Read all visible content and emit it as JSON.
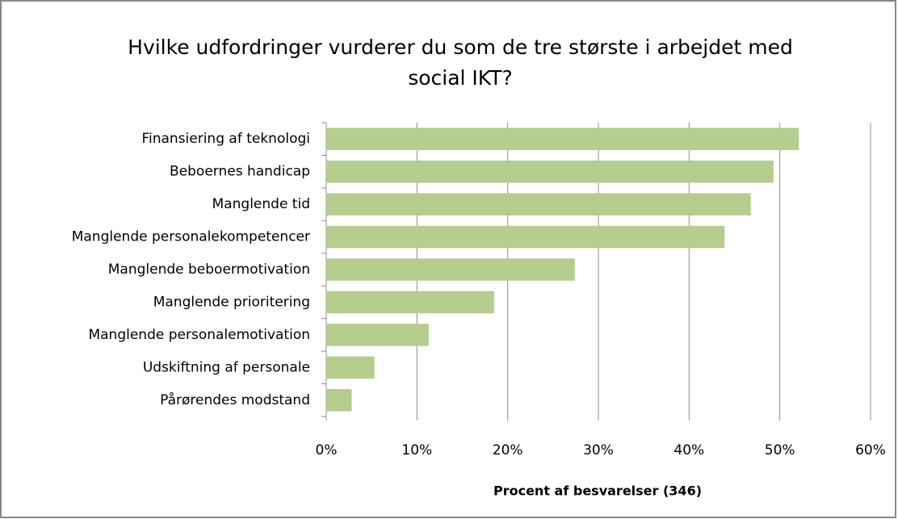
{
  "chart_data": {
    "type": "barh",
    "title": "Hvilke udfordringer vurderer du som de tre største i arbejdet med social IKT?",
    "xlabel": "Procent af besvarelser (346)",
    "categories": [
      "Finansiering af teknologi",
      "Beboernes handicap",
      "Manglende tid",
      "Manglende personalekompetencer",
      "Manglende beboermotivation",
      "Manglende prioritering",
      "Manglende personalemotivation",
      "Udskiftning af personale",
      "Pårørendes modstand"
    ],
    "values": [
      52.1,
      49.3,
      46.8,
      43.9,
      27.4,
      18.5,
      11.3,
      5.3,
      2.8
    ],
    "color": "#b5cd8d",
    "xlim": [
      0,
      60
    ],
    "xticks": [
      {
        "value": 0,
        "label": "0%"
      },
      {
        "value": 10,
        "label": "10%"
      },
      {
        "value": 20,
        "label": "20%"
      },
      {
        "value": 30,
        "label": "30%"
      },
      {
        "value": 40,
        "label": "40%"
      },
      {
        "value": 50,
        "label": "50%"
      },
      {
        "value": 60,
        "label": "60%"
      }
    ],
    "grid": true
  }
}
